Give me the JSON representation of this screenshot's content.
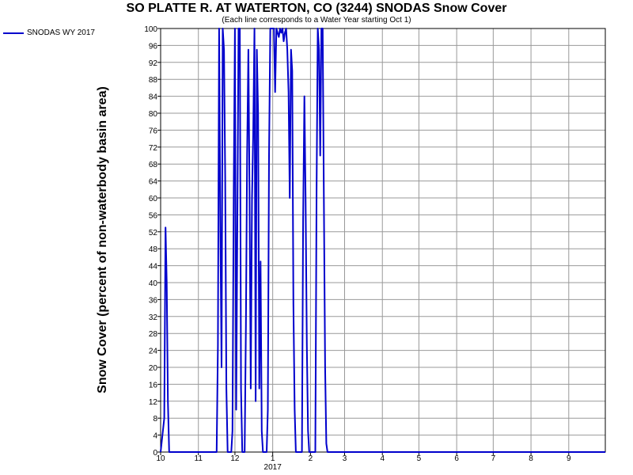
{
  "chart_data": {
    "type": "line",
    "title": "SO PLATTE R. AT WATERTON, CO (3244) SNODAS Snow Cover",
    "subtitle": "(Each line corresponds to a Water Year starting Oct 1)",
    "ylabel": "Snow Cover (percent of non-waterbody basin area)",
    "xlabel": "",
    "ylim": [
      0,
      100
    ],
    "yticks": [
      0,
      4,
      8,
      12,
      16,
      20,
      24,
      28,
      32,
      36,
      40,
      44,
      48,
      52,
      56,
      60,
      64,
      68,
      72,
      76,
      80,
      84,
      88,
      92,
      96,
      100
    ],
    "xlim": [
      0,
      365
    ],
    "xticks": [
      {
        "day": 0,
        "label": "10"
      },
      {
        "day": 31,
        "label": "11"
      },
      {
        "day": 61,
        "label": "12"
      },
      {
        "day": 92,
        "label": "1"
      },
      {
        "day": 123,
        "label": "2"
      },
      {
        "day": 151,
        "label": "3"
      },
      {
        "day": 182,
        "label": "4"
      },
      {
        "day": 212,
        "label": "5"
      },
      {
        "day": 243,
        "label": "6"
      },
      {
        "day": 273,
        "label": "7"
      },
      {
        "day": 304,
        "label": "8"
      },
      {
        "day": 335,
        "label": "9"
      }
    ],
    "year_label": {
      "day": 92,
      "label": "2017"
    },
    "grid": true,
    "legend_position": "top-left",
    "series": [
      {
        "name": "SNODAS WY 2017",
        "color": "#0000cc",
        "x": [
          0,
          3,
          4,
          5,
          6,
          7,
          8,
          9,
          10,
          15,
          40,
          46,
          47,
          48,
          49,
          50,
          51,
          52,
          53,
          54,
          55,
          56,
          57,
          58,
          59,
          60,
          61,
          62,
          63,
          64,
          65,
          66,
          67,
          68,
          69,
          70,
          71,
          72,
          73,
          74,
          75,
          76,
          77,
          78,
          79,
          80,
          81,
          82,
          83,
          84,
          85,
          86,
          87,
          88,
          89,
          90,
          91,
          92,
          93,
          94,
          95,
          96,
          97,
          98,
          99,
          100,
          101,
          102,
          103,
          104,
          105,
          106,
          107,
          108,
          109,
          110,
          111,
          112,
          113,
          114,
          115,
          116,
          117,
          118,
          119,
          120,
          121,
          122,
          123,
          124,
          125,
          126,
          127,
          128,
          129,
          130,
          131,
          132,
          133,
          134,
          135,
          136,
          137,
          138,
          139,
          140,
          141,
          142,
          143,
          144,
          145,
          146,
          147,
          148,
          149,
          150,
          151,
          152,
          153,
          154,
          155,
          156,
          157,
          158,
          170,
          365
        ],
        "values": [
          0,
          8,
          53,
          40,
          12,
          0,
          0,
          0,
          0,
          0,
          0,
          0,
          25,
          100,
          55,
          20,
          100,
          95,
          65,
          15,
          0,
          0,
          0,
          0,
          5,
          62,
          100,
          10,
          55,
          100,
          100,
          15,
          0,
          0,
          0,
          30,
          70,
          95,
          60,
          15,
          60,
          75,
          100,
          12,
          95,
          80,
          15,
          45,
          5,
          0,
          0,
          0,
          0,
          10,
          70,
          100,
          100,
          100,
          100,
          85,
          100,
          99,
          98,
          100,
          99,
          100,
          97,
          99,
          100,
          95,
          85,
          60,
          95,
          90,
          35,
          10,
          0,
          0,
          0,
          0,
          0,
          0,
          55,
          84,
          60,
          25,
          5,
          0,
          0,
          0,
          0,
          0,
          0,
          62,
          100,
          95,
          70,
          100,
          100,
          60,
          20,
          2,
          0,
          0,
          0,
          0,
          0,
          0,
          0,
          0,
          0,
          0,
          0,
          0,
          0,
          0,
          0,
          0,
          0,
          0,
          0,
          0,
          0,
          0,
          0,
          0
        ]
      }
    ]
  }
}
